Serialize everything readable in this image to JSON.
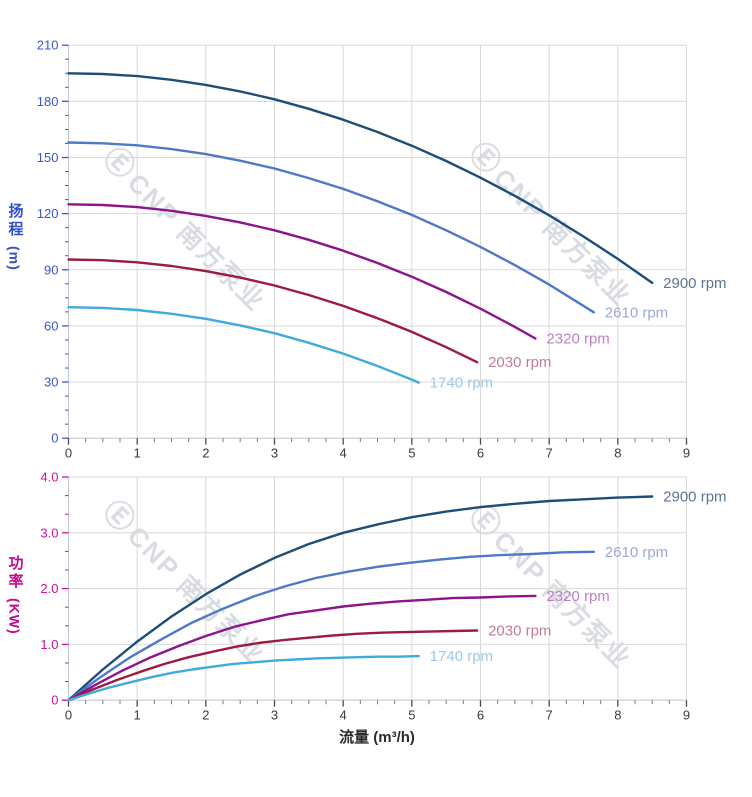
{
  "page": {
    "background": "#ffffff"
  },
  "xlabel": "流量 (m³/h)",
  "watermark": {
    "logo_glyph": "Ⓔ",
    "text": "CNP 南方泵业",
    "color": "#b4bac9"
  },
  "axis": {
    "grid_color": "#d9d9d9",
    "y_axis_line_color": "#c6cad4",
    "x_axis_line_color": "#c9c9c9",
    "x_major_tick_color": "#4a4a4a",
    "x_minor_tick_color": "#7a7a7a"
  },
  "chart_data": [
    {
      "type": "line",
      "id": "head-vs-flow",
      "ylabel": "扬程",
      "ylabel_unit": "(m)",
      "axis_title_color": "#3050cc",
      "tick_label_color": "#3b57d0",
      "x_tick_label_color": "#3a3a3a",
      "xlim": [
        0,
        9
      ],
      "ylim": [
        0,
        210
      ],
      "x_major": 1,
      "x_minor": 0.25,
      "y_major": 30,
      "y_minor": 7.5,
      "x_ticks": [
        "0",
        "1",
        "2",
        "3",
        "4",
        "5",
        "6",
        "7",
        "8",
        "9"
      ],
      "y_ticks": [
        "0",
        "30",
        "60",
        "90",
        "120",
        "150",
        "180",
        "210"
      ],
      "grid": true,
      "legend_position": "curve-end-labels",
      "series": [
        {
          "name": "2900 rpm",
          "color": "#1c4e79",
          "label_color": "#5f7396",
          "points": [
            [
              0,
              195
            ],
            [
              0.5,
              194.6
            ],
            [
              1,
              193.5
            ],
            [
              1.5,
              191.5
            ],
            [
              2,
              188.8
            ],
            [
              2.5,
              185.3
            ],
            [
              3,
              181.1
            ],
            [
              3.5,
              176.0
            ],
            [
              4,
              170.2
            ],
            [
              4.5,
              163.6
            ],
            [
              5,
              156.3
            ],
            [
              5.5,
              148.1
            ],
            [
              6,
              139.2
            ],
            [
              6.5,
              129.5
            ],
            [
              7,
              119.1
            ],
            [
              7.5,
              107.8
            ],
            [
              8,
              95.8
            ],
            [
              8.5,
              83.0
            ]
          ]
        },
        {
          "name": "2610 rpm",
          "color": "#4e79c7",
          "label_color": "#98aad8",
          "points": [
            [
              0,
              158
            ],
            [
              0.5,
              157.6
            ],
            [
              1,
              156.5
            ],
            [
              1.5,
              154.5
            ],
            [
              2,
              151.8
            ],
            [
              2.5,
              148.3
            ],
            [
              3,
              144.1
            ],
            [
              3.5,
              139.0
            ],
            [
              4,
              133.2
            ],
            [
              4.5,
              126.6
            ],
            [
              5,
              119.3
            ],
            [
              5.5,
              111.1
            ],
            [
              6,
              102.2
            ],
            [
              6.5,
              92.5
            ],
            [
              7,
              82.1
            ],
            [
              7.65,
              67.3
            ]
          ]
        },
        {
          "name": "2320 rpm",
          "color": "#8c148c",
          "label_color": "#bf7fc7",
          "points": [
            [
              0,
              125
            ],
            [
              0.5,
              124.6
            ],
            [
              1,
              123.5
            ],
            [
              1.5,
              121.5
            ],
            [
              2,
              118.8
            ],
            [
              2.5,
              115.3
            ],
            [
              3,
              111.1
            ],
            [
              3.5,
              106.0
            ],
            [
              4,
              100.2
            ],
            [
              4.5,
              93.6
            ],
            [
              5,
              86.3
            ],
            [
              5.5,
              78.1
            ],
            [
              6,
              69.2
            ],
            [
              6.5,
              59.5
            ],
            [
              6.8,
              53.3
            ]
          ]
        },
        {
          "name": "2030 rpm",
          "color": "#9c1b3e",
          "label_color": "#c17e92",
          "points": [
            [
              0,
              95.5
            ],
            [
              0.5,
              95.1
            ],
            [
              1,
              94.0
            ],
            [
              1.5,
              92.0
            ],
            [
              2,
              89.3
            ],
            [
              2.5,
              85.8
            ],
            [
              3,
              81.6
            ],
            [
              3.5,
              76.5
            ],
            [
              4,
              70.7
            ],
            [
              4.5,
              64.1
            ],
            [
              5,
              56.8
            ],
            [
              5.5,
              48.6
            ],
            [
              5.95,
              40.6
            ]
          ]
        },
        {
          "name": "1740 rpm",
          "color": "#41aadc",
          "label_color": "#9dc9ea",
          "points": [
            [
              0,
              70
            ],
            [
              0.5,
              69.6
            ],
            [
              1,
              68.5
            ],
            [
              1.5,
              66.5
            ],
            [
              2,
              63.8
            ],
            [
              2.5,
              60.3
            ],
            [
              3,
              56.1
            ],
            [
              3.5,
              51.0
            ],
            [
              4,
              45.2
            ],
            [
              4.5,
              38.6
            ],
            [
              5,
              31.3
            ],
            [
              5.1,
              29.7
            ]
          ]
        }
      ]
    },
    {
      "type": "line",
      "id": "power-vs-flow",
      "ylabel": "功率",
      "ylabel_unit": "(KW)",
      "axis_title_color": "#c40a8c",
      "tick_label_color": "#d1109b",
      "x_tick_label_color": "#3a3a3a",
      "xlim": [
        0,
        9
      ],
      "ylim": [
        0,
        4
      ],
      "x_major": 1,
      "x_minor": 0.25,
      "y_major": 1,
      "y_minor": 0.33333,
      "x_ticks": [
        "0",
        "1",
        "2",
        "3",
        "4",
        "5",
        "6",
        "7",
        "8",
        "9"
      ],
      "y_ticks": [
        "0",
        "1.0",
        "2.0",
        "3.0",
        "4.0"
      ],
      "grid": true,
      "legend_position": "curve-end-labels",
      "series": [
        {
          "name": "2900 rpm",
          "color": "#1c4e79",
          "label_color": "#5f7396",
          "points": [
            [
              0,
              0
            ],
            [
              0.5,
              0.55
            ],
            [
              1,
              1.05
            ],
            [
              1.5,
              1.5
            ],
            [
              2,
              1.9
            ],
            [
              2.5,
              2.25
            ],
            [
              3,
              2.55
            ],
            [
              3.5,
              2.8
            ],
            [
              4,
              3.0
            ],
            [
              4.5,
              3.15
            ],
            [
              5,
              3.28
            ],
            [
              5.5,
              3.38
            ],
            [
              6,
              3.46
            ],
            [
              6.5,
              3.52
            ],
            [
              7,
              3.57
            ],
            [
              7.5,
              3.6
            ],
            [
              8,
              3.63
            ],
            [
              8.5,
              3.65
            ]
          ]
        },
        {
          "name": "2610 rpm",
          "color": "#4e79c7",
          "label_color": "#98aad8",
          "points": [
            [
              0,
              0
            ],
            [
              0.45,
              0.4
            ],
            [
              0.9,
              0.77
            ],
            [
              1.35,
              1.09
            ],
            [
              1.8,
              1.39
            ],
            [
              2.25,
              1.64
            ],
            [
              2.7,
              1.86
            ],
            [
              3.15,
              2.04
            ],
            [
              3.6,
              2.19
            ],
            [
              4.05,
              2.3
            ],
            [
              4.5,
              2.39
            ],
            [
              4.95,
              2.46
            ],
            [
              5.4,
              2.52
            ],
            [
              5.85,
              2.57
            ],
            [
              6.3,
              2.6
            ],
            [
              6.75,
              2.62
            ],
            [
              7.2,
              2.65
            ],
            [
              7.65,
              2.66
            ]
          ]
        },
        {
          "name": "2320 rpm",
          "color": "#8c148c",
          "label_color": "#bf7fc7",
          "points": [
            [
              0,
              0
            ],
            [
              0.4,
              0.28
            ],
            [
              0.8,
              0.54
            ],
            [
              1.2,
              0.77
            ],
            [
              1.6,
              0.97
            ],
            [
              2,
              1.15
            ],
            [
              2.4,
              1.31
            ],
            [
              2.8,
              1.43
            ],
            [
              3.2,
              1.54
            ],
            [
              3.6,
              1.61
            ],
            [
              4,
              1.68
            ],
            [
              4.4,
              1.73
            ],
            [
              4.8,
              1.77
            ],
            [
              5.2,
              1.8
            ],
            [
              5.6,
              1.83
            ],
            [
              6,
              1.84
            ],
            [
              6.4,
              1.86
            ],
            [
              6.8,
              1.87
            ]
          ]
        },
        {
          "name": "2030 rpm",
          "color": "#9c1b3e",
          "label_color": "#c17e92",
          "points": [
            [
              0,
              0
            ],
            [
              0.35,
              0.19
            ],
            [
              0.7,
              0.36
            ],
            [
              1.05,
              0.51
            ],
            [
              1.4,
              0.65
            ],
            [
              1.75,
              0.77
            ],
            [
              2.1,
              0.87
            ],
            [
              2.45,
              0.96
            ],
            [
              2.8,
              1.03
            ],
            [
              3.15,
              1.08
            ],
            [
              3.5,
              1.12
            ],
            [
              3.85,
              1.16
            ],
            [
              4.2,
              1.19
            ],
            [
              4.55,
              1.21
            ],
            [
              4.9,
              1.22
            ],
            [
              5.25,
              1.23
            ],
            [
              5.6,
              1.24
            ],
            [
              5.95,
              1.25
            ]
          ]
        },
        {
          "name": "1740 rpm",
          "color": "#41aadc",
          "label_color": "#9dc9ea",
          "points": [
            [
              0,
              0
            ],
            [
              0.3,
              0.12
            ],
            [
              0.6,
              0.23
            ],
            [
              0.9,
              0.32
            ],
            [
              1.2,
              0.41
            ],
            [
              1.5,
              0.49
            ],
            [
              1.8,
              0.55
            ],
            [
              2.1,
              0.6
            ],
            [
              2.4,
              0.65
            ],
            [
              2.7,
              0.68
            ],
            [
              3,
              0.71
            ],
            [
              3.3,
              0.73
            ],
            [
              3.6,
              0.75
            ],
            [
              3.9,
              0.76
            ],
            [
              4.2,
              0.77
            ],
            [
              4.5,
              0.78
            ],
            [
              4.8,
              0.78
            ],
            [
              5.1,
              0.79
            ]
          ]
        }
      ]
    }
  ]
}
